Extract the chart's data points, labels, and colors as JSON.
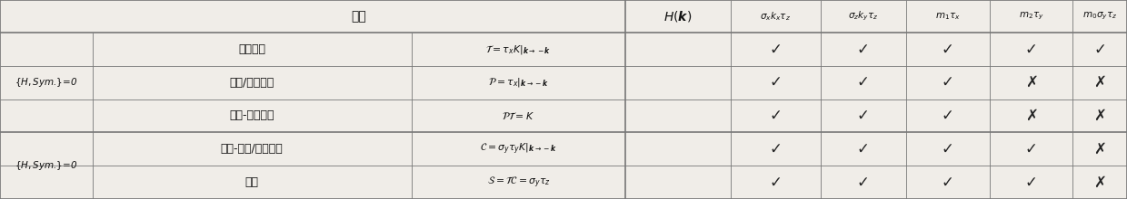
{
  "col_group": 0.082,
  "col_name": 0.365,
  "col_formula": 0.555,
  "col_checks": [
    0.555,
    0.648,
    0.728,
    0.804,
    0.878,
    0.952
  ],
  "row_tops": [
    1.0,
    0.835,
    0.668,
    0.502,
    0.335,
    0.168,
    0.0
  ],
  "group1_label": "{H,Sym.}=0",
  "group2_label": "{H,Sym.}=0",
  "header_sym": "对称",
  "header_hk": "$\\mathit{H}(\\boldsymbol{k})$",
  "check_headers": [
    "$\\sigma_x k_x \\tau_z$",
    "$\\sigma_z k_y \\tau_z$",
    "$m_1 \\tau_x$",
    "$m_2 \\tau_y$",
    "$m_0 \\sigma_y \\tau_z$"
  ],
  "rows": [
    {
      "row_idx": 1,
      "name": "时间反演",
      "formula": "$\\mathcal{T}=\\tau_x K|_{\\boldsymbol{k}\\rightarrow -\\boldsymbol{k}}$",
      "checks": [
        1,
        1,
        1,
        1,
        1
      ]
    },
    {
      "row_idx": 2,
      "name": "宇称/空间反演",
      "formula": "$\\mathcal{P}=\\tau_x|_{\\boldsymbol{k}\\rightarrow -\\boldsymbol{k}}$",
      "checks": [
        1,
        1,
        1,
        0,
        0
      ]
    },
    {
      "row_idx": 3,
      "name": "空间-时间反演",
      "formula": "$\\mathcal{PT}=K$",
      "checks": [
        1,
        1,
        1,
        0,
        0
      ]
    },
    {
      "row_idx": 4,
      "name": "粒子-空穴/电荷共轭",
      "formula": "$\\mathcal{C}=\\sigma_y\\tau_y K|_{\\boldsymbol{k}\\rightarrow -\\boldsymbol{k}}$",
      "checks": [
        1,
        1,
        1,
        1,
        0
      ]
    },
    {
      "row_idx": 5,
      "name": "手性",
      "formula": "$\\mathcal{S}=\\mathcal{TC}=\\sigma_y\\tau_z$",
      "checks": [
        1,
        1,
        1,
        1,
        0
      ]
    }
  ],
  "bg_color": "#f0ede8",
  "line_color": "#777777",
  "text_color": "#111111",
  "check_color": "#222222",
  "thick_lw": 1.2,
  "thin_lw": 0.6
}
